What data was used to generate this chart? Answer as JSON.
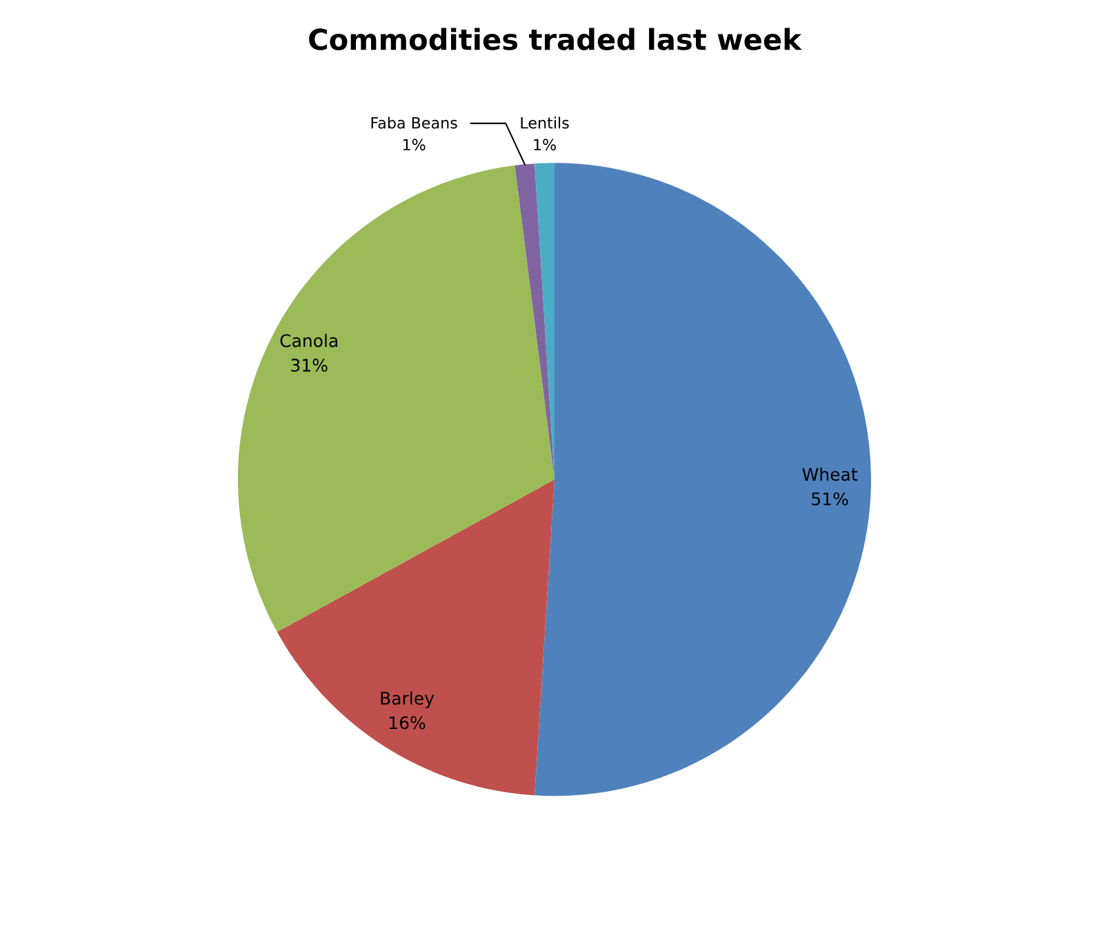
{
  "chart_data": {
    "type": "pie",
    "title": "Commodities traded last week",
    "categories": [
      "Wheat",
      "Barley",
      "Canola",
      "Faba Beans",
      "Lentils"
    ],
    "values": [
      51,
      16,
      31,
      1,
      1
    ],
    "colors": [
      "#4f81bd",
      "#c0504d",
      "#9bbb59",
      "#8064a2",
      "#4bacc6"
    ],
    "value_labels": [
      "51%",
      "16%",
      "31%",
      "1%",
      "1%"
    ]
  }
}
